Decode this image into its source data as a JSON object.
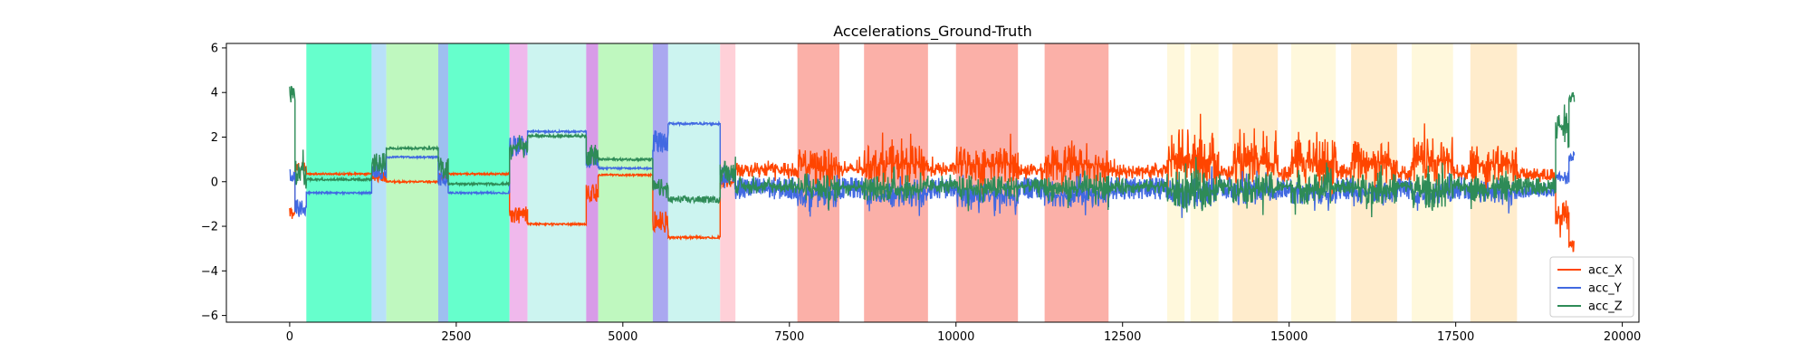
{
  "chart_data": {
    "type": "line",
    "title": "Accelerations_Ground-Truth",
    "xlabel": "",
    "ylabel": "",
    "xlim": [
      -950,
      20250
    ],
    "ylim": [
      -6.3,
      6.2
    ],
    "xticks": [
      0,
      2500,
      5000,
      7500,
      10000,
      12500,
      15000,
      17500,
      20000
    ],
    "yticks": [
      -6,
      -4,
      -2,
      0,
      2,
      4,
      6
    ],
    "grid": false,
    "legend": {
      "placement": "lower-right",
      "entries": [
        "acc_X",
        "acc_Y",
        "acc_Z"
      ]
    },
    "activity_bands": [
      {
        "x0": 250,
        "x1": 1230,
        "color": "#66ffcc"
      },
      {
        "x0": 1230,
        "x1": 1450,
        "color": "#b8e0f8"
      },
      {
        "x0": 1450,
        "x1": 2230,
        "color": "#bff8bf"
      },
      {
        "x0": 2230,
        "x1": 2380,
        "color": "#9ebff0"
      },
      {
        "x0": 2380,
        "x1": 3300,
        "color": "#66ffcc"
      },
      {
        "x0": 3300,
        "x1": 3570,
        "color": "#f0b8ec"
      },
      {
        "x0": 3570,
        "x1": 4450,
        "color": "#ccf4f0"
      },
      {
        "x0": 4450,
        "x1": 4630,
        "color": "#d89ce8"
      },
      {
        "x0": 4630,
        "x1": 5450,
        "color": "#bff8bf"
      },
      {
        "x0": 5450,
        "x1": 5680,
        "color": "#aaa8f0"
      },
      {
        "x0": 5680,
        "x1": 6460,
        "color": "#ccf4f0"
      },
      {
        "x0": 6460,
        "x1": 6690,
        "color": "#ffd0d8"
      },
      {
        "x0": 7620,
        "x1": 8250,
        "color": "#fbb0a8"
      },
      {
        "x0": 8620,
        "x1": 9580,
        "color": "#fbb0a8"
      },
      {
        "x0": 10000,
        "x1": 10930,
        "color": "#fbb0a8"
      },
      {
        "x0": 11330,
        "x1": 12290,
        "color": "#fbb0a8"
      },
      {
        "x0": 13170,
        "x1": 13430,
        "color": "#fff8dc"
      },
      {
        "x0": 13520,
        "x1": 13940,
        "color": "#fff8dc"
      },
      {
        "x0": 14150,
        "x1": 14830,
        "color": "#ffeccc"
      },
      {
        "x0": 15030,
        "x1": 15700,
        "color": "#fff8dc"
      },
      {
        "x0": 15930,
        "x1": 16620,
        "color": "#ffeccc"
      },
      {
        "x0": 16840,
        "x1": 17460,
        "color": "#fff8dc"
      },
      {
        "x0": 17720,
        "x1": 18420,
        "color": "#ffeccc"
      }
    ],
    "series": [
      {
        "name": "acc_X",
        "color": "#ff4500",
        "segments": [
          {
            "x0": 0,
            "x1": 80,
            "base": -1.4,
            "amp": 0.3
          },
          {
            "x0": 80,
            "x1": 250,
            "base": 0.6,
            "amp": 0.3
          },
          {
            "x0": 250,
            "x1": 1230,
            "base": 0.35,
            "amp": 0.04
          },
          {
            "x0": 1230,
            "x1": 1450,
            "base": 0.2,
            "amp": 0.2
          },
          {
            "x0": 1450,
            "x1": 2230,
            "base": 0.0,
            "amp": 0.04
          },
          {
            "x0": 2230,
            "x1": 2380,
            "base": 0.2,
            "amp": 0.15
          },
          {
            "x0": 2380,
            "x1": 3300,
            "base": 0.35,
            "amp": 0.04
          },
          {
            "x0": 3300,
            "x1": 3570,
            "base": -1.5,
            "amp": 0.4
          },
          {
            "x0": 3570,
            "x1": 4450,
            "base": -1.9,
            "amp": 0.04
          },
          {
            "x0": 4450,
            "x1": 4630,
            "base": -0.5,
            "amp": 0.4
          },
          {
            "x0": 4630,
            "x1": 5450,
            "base": 0.3,
            "amp": 0.04
          },
          {
            "x0": 5450,
            "x1": 5680,
            "base": -1.8,
            "amp": 0.5
          },
          {
            "x0": 5680,
            "x1": 6460,
            "base": -2.5,
            "amp": 0.05
          },
          {
            "x0": 6460,
            "x1": 6690,
            "base": 0.0,
            "amp": 0.6
          },
          {
            "x0": 6690,
            "x1": 7620,
            "base": 0.55,
            "amp": 0.6
          },
          {
            "x0": 7620,
            "x1": 8250,
            "base": 0.7,
            "amp": 1.4
          },
          {
            "x0": 8250,
            "x1": 8620,
            "base": 0.55,
            "amp": 0.6
          },
          {
            "x0": 8620,
            "x1": 9580,
            "base": 0.8,
            "amp": 1.5
          },
          {
            "x0": 9580,
            "x1": 10000,
            "base": 0.55,
            "amp": 0.6
          },
          {
            "x0": 10000,
            "x1": 10930,
            "base": 0.8,
            "amp": 1.5
          },
          {
            "x0": 10930,
            "x1": 11330,
            "base": 0.5,
            "amp": 0.6
          },
          {
            "x0": 11330,
            "x1": 12290,
            "base": 0.8,
            "amp": 1.5
          },
          {
            "x0": 12290,
            "x1": 13170,
            "base": 0.45,
            "amp": 0.6
          },
          {
            "x0": 13170,
            "x1": 13940,
            "base": 1.0,
            "amp": 2.1
          },
          {
            "x0": 13940,
            "x1": 14150,
            "base": 0.4,
            "amp": 0.7
          },
          {
            "x0": 14150,
            "x1": 14830,
            "base": 0.8,
            "amp": 1.6
          },
          {
            "x0": 14830,
            "x1": 15030,
            "base": 0.4,
            "amp": 0.7
          },
          {
            "x0": 15030,
            "x1": 15700,
            "base": 0.9,
            "amp": 1.9
          },
          {
            "x0": 15700,
            "x1": 15930,
            "base": 0.4,
            "amp": 0.7
          },
          {
            "x0": 15930,
            "x1": 16620,
            "base": 0.9,
            "amp": 1.9
          },
          {
            "x0": 16620,
            "x1": 16840,
            "base": 0.4,
            "amp": 0.7
          },
          {
            "x0": 16840,
            "x1": 17460,
            "base": 0.9,
            "amp": 1.9
          },
          {
            "x0": 17460,
            "x1": 17720,
            "base": 0.4,
            "amp": 0.7
          },
          {
            "x0": 17720,
            "x1": 18420,
            "base": 0.8,
            "amp": 1.5
          },
          {
            "x0": 18420,
            "x1": 19000,
            "base": 0.3,
            "amp": 0.3
          },
          {
            "x0": 19000,
            "x1": 19200,
            "base": -1.5,
            "amp": 1.2
          },
          {
            "x0": 19200,
            "x1": 19280,
            "base": -2.9,
            "amp": 0.3
          }
        ]
      },
      {
        "name": "acc_Y",
        "color": "#4169e1",
        "segments": [
          {
            "x0": 0,
            "x1": 80,
            "base": 0.3,
            "amp": 0.3
          },
          {
            "x0": 80,
            "x1": 250,
            "base": -1.2,
            "amp": 0.8
          },
          {
            "x0": 250,
            "x1": 1230,
            "base": -0.5,
            "amp": 0.04
          },
          {
            "x0": 1230,
            "x1": 1450,
            "base": 0.5,
            "amp": 0.4
          },
          {
            "x0": 1450,
            "x1": 2230,
            "base": 1.1,
            "amp": 0.04
          },
          {
            "x0": 2230,
            "x1": 2380,
            "base": 0.2,
            "amp": 0.4
          },
          {
            "x0": 2380,
            "x1": 3300,
            "base": -0.5,
            "amp": 0.04
          },
          {
            "x0": 3300,
            "x1": 3570,
            "base": 1.6,
            "amp": 0.5
          },
          {
            "x0": 3570,
            "x1": 4450,
            "base": 2.25,
            "amp": 0.04
          },
          {
            "x0": 4450,
            "x1": 4630,
            "base": 1.0,
            "amp": 0.4
          },
          {
            "x0": 4630,
            "x1": 5450,
            "base": 0.6,
            "amp": 0.04
          },
          {
            "x0": 5450,
            "x1": 5680,
            "base": 1.8,
            "amp": 0.5
          },
          {
            "x0": 5680,
            "x1": 6460,
            "base": 2.6,
            "amp": 0.05
          },
          {
            "x0": 6460,
            "x1": 6690,
            "base": 0.3,
            "amp": 0.8
          },
          {
            "x0": 6690,
            "x1": 7620,
            "base": -0.3,
            "amp": 0.5
          },
          {
            "x0": 7620,
            "x1": 8250,
            "base": -0.6,
            "amp": 1.0
          },
          {
            "x0": 8250,
            "x1": 8620,
            "base": -0.3,
            "amp": 0.5
          },
          {
            "x0": 8620,
            "x1": 9580,
            "base": -0.6,
            "amp": 1.0
          },
          {
            "x0": 9580,
            "x1": 10000,
            "base": -0.3,
            "amp": 0.5
          },
          {
            "x0": 10000,
            "x1": 10930,
            "base": -0.6,
            "amp": 1.0
          },
          {
            "x0": 10930,
            "x1": 11330,
            "base": -0.3,
            "amp": 0.5
          },
          {
            "x0": 11330,
            "x1": 12290,
            "base": -0.6,
            "amp": 1.0
          },
          {
            "x0": 12290,
            "x1": 13170,
            "base": -0.3,
            "amp": 0.5
          },
          {
            "x0": 13170,
            "x1": 13940,
            "base": -0.5,
            "amp": 1.2
          },
          {
            "x0": 13940,
            "x1": 14150,
            "base": -0.3,
            "amp": 0.5
          },
          {
            "x0": 14150,
            "x1": 14830,
            "base": -0.5,
            "amp": 1.0
          },
          {
            "x0": 14830,
            "x1": 15030,
            "base": -0.3,
            "amp": 0.5
          },
          {
            "x0": 15030,
            "x1": 15700,
            "base": -0.5,
            "amp": 1.0
          },
          {
            "x0": 15700,
            "x1": 15930,
            "base": -0.3,
            "amp": 0.5
          },
          {
            "x0": 15930,
            "x1": 16620,
            "base": -0.5,
            "amp": 1.0
          },
          {
            "x0": 16620,
            "x1": 16840,
            "base": -0.3,
            "amp": 0.5
          },
          {
            "x0": 16840,
            "x1": 17460,
            "base": -0.5,
            "amp": 1.0
          },
          {
            "x0": 17460,
            "x1": 17720,
            "base": -0.3,
            "amp": 0.5
          },
          {
            "x0": 17720,
            "x1": 18420,
            "base": -0.5,
            "amp": 1.0
          },
          {
            "x0": 18420,
            "x1": 19000,
            "base": -0.4,
            "amp": 0.3
          },
          {
            "x0": 19000,
            "x1": 19200,
            "base": 0.2,
            "amp": 0.6
          },
          {
            "x0": 19200,
            "x1": 19280,
            "base": 1.1,
            "amp": 0.3
          }
        ]
      },
      {
        "name": "acc_Z",
        "color": "#2e8b57",
        "segments": [
          {
            "x0": 0,
            "x1": 80,
            "base": 3.9,
            "amp": 0.4
          },
          {
            "x0": 80,
            "x1": 250,
            "base": 0.5,
            "amp": 1.2
          },
          {
            "x0": 250,
            "x1": 1230,
            "base": 0.1,
            "amp": 0.05
          },
          {
            "x0": 1230,
            "x1": 1450,
            "base": 0.8,
            "amp": 0.5
          },
          {
            "x0": 1450,
            "x1": 2230,
            "base": 1.5,
            "amp": 0.05
          },
          {
            "x0": 2230,
            "x1": 2380,
            "base": 0.6,
            "amp": 0.5
          },
          {
            "x0": 2380,
            "x1": 3300,
            "base": -0.1,
            "amp": 0.05
          },
          {
            "x0": 3300,
            "x1": 3570,
            "base": 1.5,
            "amp": 0.6
          },
          {
            "x0": 3570,
            "x1": 4450,
            "base": 2.05,
            "amp": 0.05
          },
          {
            "x0": 4450,
            "x1": 4630,
            "base": 1.2,
            "amp": 0.5
          },
          {
            "x0": 4630,
            "x1": 5450,
            "base": 1.0,
            "amp": 0.05
          },
          {
            "x0": 5450,
            "x1": 5680,
            "base": -0.3,
            "amp": 0.8
          },
          {
            "x0": 5680,
            "x1": 6460,
            "base": -0.8,
            "amp": 0.15
          },
          {
            "x0": 6460,
            "x1": 6690,
            "base": 0.5,
            "amp": 1.0
          },
          {
            "x0": 6690,
            "x1": 7620,
            "base": -0.2,
            "amp": 0.6
          },
          {
            "x0": 7620,
            "x1": 8250,
            "base": -0.3,
            "amp": 1.1
          },
          {
            "x0": 8250,
            "x1": 8620,
            "base": -0.2,
            "amp": 0.6
          },
          {
            "x0": 8620,
            "x1": 9580,
            "base": -0.3,
            "amp": 1.1
          },
          {
            "x0": 9580,
            "x1": 10000,
            "base": -0.2,
            "amp": 0.6
          },
          {
            "x0": 10000,
            "x1": 10930,
            "base": -0.3,
            "amp": 1.1
          },
          {
            "x0": 10930,
            "x1": 11330,
            "base": -0.2,
            "amp": 0.6
          },
          {
            "x0": 11330,
            "x1": 12290,
            "base": -0.3,
            "amp": 1.1
          },
          {
            "x0": 12290,
            "x1": 13170,
            "base": -0.2,
            "amp": 0.6
          },
          {
            "x0": 13170,
            "x1": 13940,
            "base": -0.4,
            "amp": 1.6
          },
          {
            "x0": 13940,
            "x1": 14150,
            "base": -0.2,
            "amp": 0.6
          },
          {
            "x0": 14150,
            "x1": 14830,
            "base": -0.3,
            "amp": 1.2
          },
          {
            "x0": 14830,
            "x1": 15030,
            "base": -0.2,
            "amp": 0.6
          },
          {
            "x0": 15030,
            "x1": 15700,
            "base": -0.3,
            "amp": 1.3
          },
          {
            "x0": 15700,
            "x1": 15930,
            "base": -0.2,
            "amp": 0.6
          },
          {
            "x0": 15930,
            "x1": 16620,
            "base": -0.3,
            "amp": 1.3
          },
          {
            "x0": 16620,
            "x1": 16840,
            "base": -0.2,
            "amp": 0.6
          },
          {
            "x0": 16840,
            "x1": 17460,
            "base": -0.4,
            "amp": 1.5
          },
          {
            "x0": 17460,
            "x1": 17720,
            "base": -0.2,
            "amp": 0.6
          },
          {
            "x0": 17720,
            "x1": 18420,
            "base": -0.3,
            "amp": 1.1
          },
          {
            "x0": 18420,
            "x1": 19000,
            "base": -0.2,
            "amp": 0.4
          },
          {
            "x0": 19000,
            "x1": 19200,
            "base": 2.5,
            "amp": 1.8
          },
          {
            "x0": 19200,
            "x1": 19280,
            "base": 3.8,
            "amp": 0.6
          }
        ]
      }
    ]
  }
}
